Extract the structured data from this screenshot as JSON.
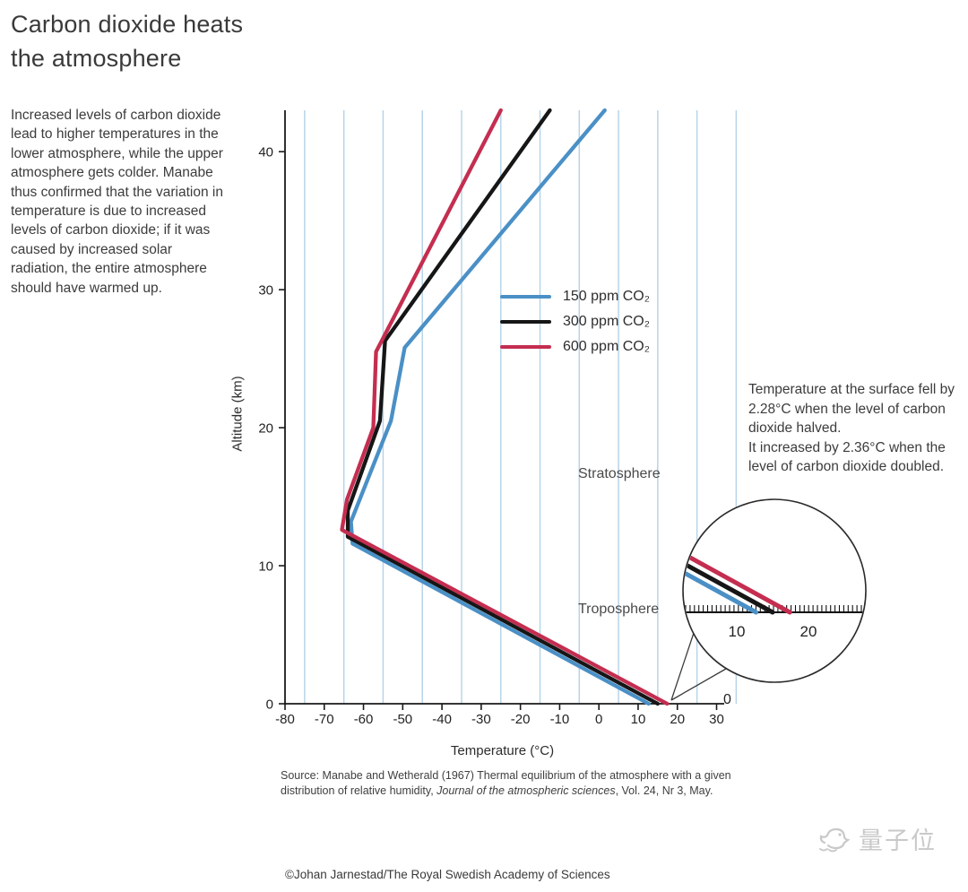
{
  "title": "Carbon dioxide heats\nthe atmosphere",
  "intro": "Increased levels of carbon dioxide lead to higher temperatures in the lower atmosphere, while the upper atmosphere gets colder. Manabe thus confirmed that the variation in temperature is due to increased levels of carbon dioxide; if it was caused by increased solar radiation, the entire atmosphere should have warmed up.",
  "chart_data": {
    "type": "line",
    "xlabel": "Temperature (°C)",
    "ylabel": "Altitude (km)",
    "xlim": [
      -80,
      30
    ],
    "ylim": [
      0,
      43
    ],
    "x_ticks": [
      -80,
      -70,
      -60,
      -50,
      -40,
      -30,
      -20,
      -10,
      0,
      10,
      20,
      30
    ],
    "y_ticks": [
      0,
      10,
      20,
      30,
      40
    ],
    "grid_x": [
      -75,
      -65,
      -55,
      -45,
      -35,
      -25,
      -15,
      -5,
      5,
      15,
      25,
      35
    ],
    "grid_color": "#b8d4e8",
    "series": [
      {
        "name": "150 ppm CO₂",
        "color": "#4a90c6",
        "points_alt_temp": [
          [
            0,
            12.7
          ],
          [
            11.6,
            -62.8
          ],
          [
            13.2,
            -63.2
          ],
          [
            20.5,
            -53.0
          ],
          [
            25.8,
            -49.5
          ],
          [
            43,
            1.5
          ]
        ]
      },
      {
        "name": "300 ppm CO₂",
        "color": "#161616",
        "points_alt_temp": [
          [
            0,
            15.0
          ],
          [
            12.1,
            -64.0
          ],
          [
            14.0,
            -64.0
          ],
          [
            20.5,
            -55.8
          ],
          [
            26.3,
            -54.5
          ],
          [
            43,
            -12.5
          ]
        ]
      },
      {
        "name": "600 ppm CO₂",
        "color": "#c42e50",
        "points_alt_temp": [
          [
            0,
            17.4
          ],
          [
            12.6,
            -65.5
          ],
          [
            14.8,
            -64.2
          ],
          [
            20.0,
            -57.5
          ],
          [
            25.5,
            -56.8
          ],
          [
            43,
            -25.0
          ]
        ]
      }
    ],
    "region_labels": {
      "stratosphere": "Stratosphere",
      "troposphere": "Troposphere"
    },
    "surface_label": "0",
    "inset": {
      "tick_labels": [
        "10",
        "20"
      ],
      "tick_values": [
        10,
        20
      ]
    }
  },
  "annotation": "Temperature at the surface fell by 2.28°C when the level of carbon dioxide halved.\nIt increased by 2.36°C when the level of carbon dioxide doubled.",
  "source": {
    "line1": "Source: Manabe and Wetherald (1967) Thermal equilibrium of the atmosphere with a given",
    "line2_pre": "distribution of relative humidity, ",
    "line2_italic": "Journal of the atmospheric sciences",
    "line2_post": ", Vol. 24, Nr 3, May."
  },
  "copyright": "©Johan Jarnestad/The Royal Swedish Academy of Sciences",
  "watermark": "量子位"
}
